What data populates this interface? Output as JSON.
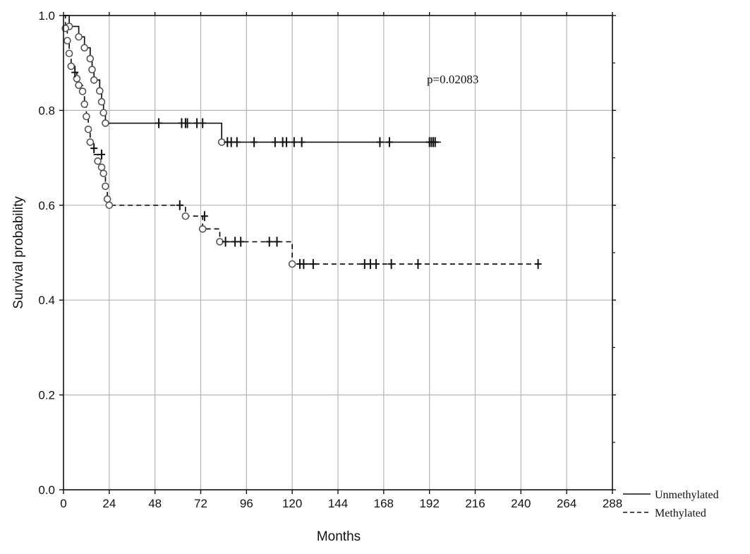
{
  "chart_data": {
    "type": "line",
    "title": "",
    "xlabel": "Months",
    "ylabel": "Survival probability",
    "xlim": [
      0,
      288
    ],
    "ylim": [
      0.0,
      1.0
    ],
    "x_ticks": [
      0,
      24,
      48,
      72,
      96,
      120,
      144,
      168,
      192,
      216,
      240,
      264,
      288
    ],
    "x_tick_labels": [
      "0",
      "24",
      "48",
      "72",
      "96",
      "120",
      "144",
      "168",
      "192",
      "216",
      "240",
      "264",
      "288"
    ],
    "y_ticks": [
      0.0,
      0.2,
      0.4,
      0.6,
      0.8,
      1.0
    ],
    "y_tick_labels": [
      "0.0",
      "0.2",
      "0.4",
      "0.6",
      "0.8",
      "1.0"
    ],
    "grid": true,
    "annotation": "p=0.02083",
    "legend_position": "bottom-right, outside plot",
    "colors": {
      "series": "#111111",
      "grid": "#b4b4b4",
      "event_marker": "#555555"
    },
    "series": [
      {
        "name": "Unmethylated",
        "line_style": "solid",
        "steps": [
          [
            0,
            1.0
          ],
          [
            3,
            0.977
          ],
          [
            8,
            0.955
          ],
          [
            11,
            0.932
          ],
          [
            14,
            0.909
          ],
          [
            15,
            0.886
          ],
          [
            16,
            0.864
          ],
          [
            19,
            0.841
          ],
          [
            20,
            0.818
          ],
          [
            21,
            0.795
          ],
          [
            22,
            0.773
          ],
          [
            83,
            0.733
          ],
          [
            198,
            0.733
          ]
        ],
        "events": [
          [
            3,
            0.977
          ],
          [
            8,
            0.955
          ],
          [
            11,
            0.932
          ],
          [
            14,
            0.909
          ],
          [
            15,
            0.886
          ],
          [
            16,
            0.864
          ],
          [
            19,
            0.841
          ],
          [
            20,
            0.818
          ],
          [
            21,
            0.795
          ],
          [
            22,
            0.773
          ],
          [
            83,
            0.733
          ]
        ],
        "censored": [
          [
            50,
            0.773
          ],
          [
            62,
            0.773
          ],
          [
            64,
            0.773
          ],
          [
            65,
            0.773
          ],
          [
            70,
            0.773
          ],
          [
            73,
            0.773
          ],
          [
            86,
            0.733
          ],
          [
            88,
            0.733
          ],
          [
            91,
            0.733
          ],
          [
            100,
            0.733
          ],
          [
            111,
            0.733
          ],
          [
            115,
            0.733
          ],
          [
            117,
            0.733
          ],
          [
            121,
            0.733
          ],
          [
            125,
            0.733
          ],
          [
            166,
            0.733
          ],
          [
            171,
            0.733
          ],
          [
            192,
            0.733
          ],
          [
            193,
            0.733
          ],
          [
            194,
            0.733
          ],
          [
            195,
            0.733
          ]
        ]
      },
      {
        "name": "Methylated",
        "line_style": "dashed",
        "steps": [
          [
            0,
            1.0
          ],
          [
            1,
            0.973
          ],
          [
            2,
            0.947
          ],
          [
            3,
            0.92
          ],
          [
            4,
            0.893
          ],
          [
            6,
            0.88
          ],
          [
            7,
            0.867
          ],
          [
            8,
            0.853
          ],
          [
            10,
            0.84
          ],
          [
            11,
            0.813
          ],
          [
            12,
            0.787
          ],
          [
            13,
            0.76
          ],
          [
            14,
            0.733
          ],
          [
            15,
            0.72
          ],
          [
            16,
            0.707
          ],
          [
            18,
            0.693
          ],
          [
            20,
            0.68
          ],
          [
            21,
            0.667
          ],
          [
            22,
            0.64
          ],
          [
            23,
            0.613
          ],
          [
            24,
            0.6
          ],
          [
            64,
            0.577
          ],
          [
            73,
            0.55
          ],
          [
            82,
            0.523
          ],
          [
            120,
            0.476
          ],
          [
            251,
            0.476
          ]
        ],
        "events": [
          [
            1,
            0.973
          ],
          [
            2,
            0.947
          ],
          [
            3,
            0.92
          ],
          [
            4,
            0.893
          ],
          [
            7,
            0.867
          ],
          [
            8,
            0.853
          ],
          [
            10,
            0.84
          ],
          [
            11,
            0.813
          ],
          [
            12,
            0.787
          ],
          [
            13,
            0.76
          ],
          [
            14,
            0.733
          ],
          [
            18,
            0.693
          ],
          [
            20,
            0.68
          ],
          [
            21,
            0.667
          ],
          [
            22,
            0.64
          ],
          [
            23,
            0.613
          ],
          [
            24,
            0.6
          ],
          [
            64,
            0.577
          ],
          [
            73,
            0.55
          ],
          [
            82,
            0.523
          ],
          [
            120,
            0.476
          ]
        ],
        "censored": [
          [
            6,
            0.88
          ],
          [
            16,
            0.72
          ],
          [
            20,
            0.707
          ],
          [
            61,
            0.6
          ],
          [
            74,
            0.577
          ],
          [
            85,
            0.523
          ],
          [
            90,
            0.523
          ],
          [
            93,
            0.523
          ],
          [
            108,
            0.523
          ],
          [
            112,
            0.523
          ],
          [
            124,
            0.476
          ],
          [
            126,
            0.476
          ],
          [
            131,
            0.476
          ],
          [
            158,
            0.476
          ],
          [
            161,
            0.476
          ],
          [
            164,
            0.476
          ],
          [
            172,
            0.476
          ],
          [
            186,
            0.476
          ],
          [
            249,
            0.476
          ]
        ]
      }
    ]
  }
}
